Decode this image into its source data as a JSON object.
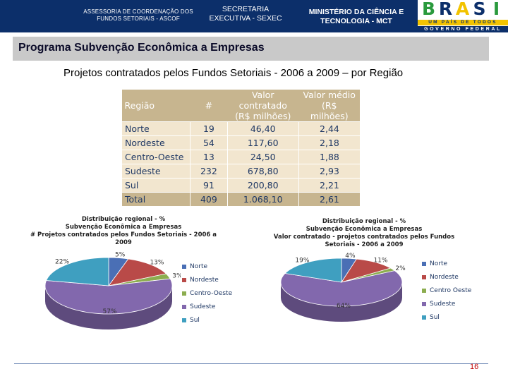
{
  "header": {
    "left_text": "ASSESSORIA DE COORDENAÇÃO DOS FUNDOS SETORIAIS - ASCOF",
    "center_text": "SECRETARIA EXECUTIVA - SEXEC",
    "right_text": "MINISTÉRIO DA CIÊNCIA E TECNOLOGIA - MCT",
    "logo": {
      "word": "BRASIL",
      "tagline": "UM PAÍS DE TODOS",
      "gov": "GOVERNO FEDERAL"
    }
  },
  "band_title": "Programa Subvenção Econômica a Empresas",
  "subtitle": "Projetos contratados pelos Fundos Setoriais - 2006 a 2009 – por Região",
  "table": {
    "headers": [
      "Região",
      "#",
      "Valor contratado (R$ milhões)",
      "Valor médio (R$ milhões)"
    ],
    "rows": [
      [
        "Norte",
        "19",
        "46,40",
        "2,44"
      ],
      [
        "Nordeste",
        "54",
        "117,60",
        "2,18"
      ],
      [
        "Centro-Oeste",
        "13",
        "24,50",
        "1,88"
      ],
      [
        "Sudeste",
        "232",
        "678,80",
        "2,93"
      ],
      [
        "Sul",
        "91",
        "200,80",
        "2,21"
      ],
      [
        "Total",
        "409",
        "1.068,10",
        "2,61"
      ]
    ]
  },
  "chart_data": [
    {
      "type": "pie",
      "title": "Distribuição regional - % Subvenção Econômica a Empresas # Projetos contratados pelos Fundos Setoriais - 2006 a 2009",
      "title_lines": [
        "Distribuição regional - %",
        "Subvenção Econômica a Empresas",
        "# Projetos contratados pelos Fundos Setoriais - 2006 a 2009"
      ],
      "categories": [
        "Norte",
        "Nordeste",
        "Centro-Oeste",
        "Sudeste",
        "Sul"
      ],
      "values": [
        5,
        13,
        3,
        57,
        22
      ],
      "labels": [
        "5%",
        "13%",
        "3%",
        "57%",
        "22%"
      ],
      "colors": [
        "#4a6fb5",
        "#b94a48",
        "#8cad4f",
        "#8268ad",
        "#3f9fc0"
      ],
      "legend_position": "right"
    },
    {
      "type": "pie",
      "title": "Distribuição regional - % Subvenção Econômica a Empresas Valor contratado - projetos contratados pelos Fundos Setoriais - 2006 a 2009",
      "title_lines": [
        "Distribuição regional - %",
        "Subvenção Econômica a Empresas",
        "Valor contratado - projetos contratados pelos Fundos",
        "Setoriais - 2006 a 2009"
      ],
      "categories": [
        "Norte",
        "Nordeste",
        "Centro Oeste",
        "Sudeste",
        "Sul"
      ],
      "values": [
        4,
        11,
        2,
        64,
        19
      ],
      "labels": [
        "4%",
        "11%",
        "2%",
        "64%",
        "19%"
      ],
      "colors": [
        "#4a6fb5",
        "#b94a48",
        "#8cad4f",
        "#8268ad",
        "#3f9fc0"
      ],
      "legend_position": "right"
    }
  ],
  "page_number": "16"
}
